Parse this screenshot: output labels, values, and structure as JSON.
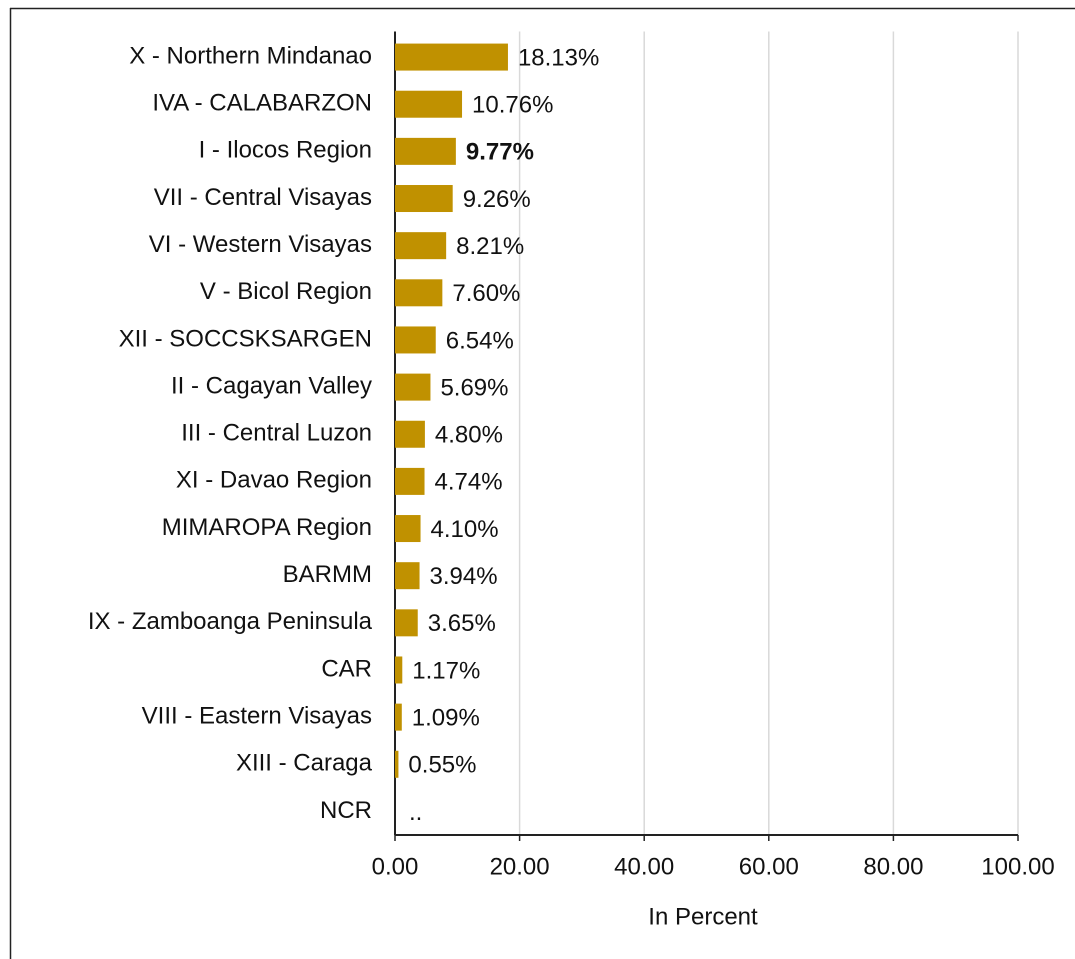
{
  "chart_data": {
    "type": "bar",
    "orientation": "horizontal",
    "categories": [
      "X - Northern Mindanao",
      "IVA - CALABARZON",
      "I - Ilocos Region",
      "VII - Central Visayas",
      "VI - Western Visayas",
      "V - Bicol Region",
      "XII - SOCCSKSARGEN",
      "II - Cagayan Valley",
      "III - Central Luzon",
      "XI - Davao Region",
      "MIMAROPA Region",
      "BARMM",
      "IX - Zamboanga Peninsula",
      "CAR",
      "VIII - Eastern Visayas",
      "XIII - Caraga",
      "NCR"
    ],
    "values": [
      18.13,
      10.76,
      9.77,
      9.26,
      8.21,
      7.6,
      6.54,
      5.69,
      4.8,
      4.74,
      4.1,
      3.94,
      3.65,
      1.17,
      1.09,
      0.55,
      null
    ],
    "value_labels": [
      "18.13%",
      "10.76%",
      "9.77%",
      "9.26%",
      "8.21%",
      "7.60%",
      "6.54%",
      "5.69%",
      "4.80%",
      "4.74%",
      "4.10%",
      "3.94%",
      "3.65%",
      "1.17%",
      "1.09%",
      "0.55%",
      ".."
    ],
    "highlight": "I - Ilocos Region",
    "color": "#c09100",
    "xlabel": "In Percent",
    "xlim": [
      0,
      100
    ],
    "xticks": [
      {
        "value": 0,
        "label": "0.00"
      },
      {
        "value": 20,
        "label": "20.00"
      },
      {
        "value": 40,
        "label": "40.00"
      },
      {
        "value": 60,
        "label": "60.00"
      },
      {
        "value": 80,
        "label": "80.00"
      },
      {
        "value": 100,
        "label": "100.00"
      }
    ],
    "grid": true
  }
}
